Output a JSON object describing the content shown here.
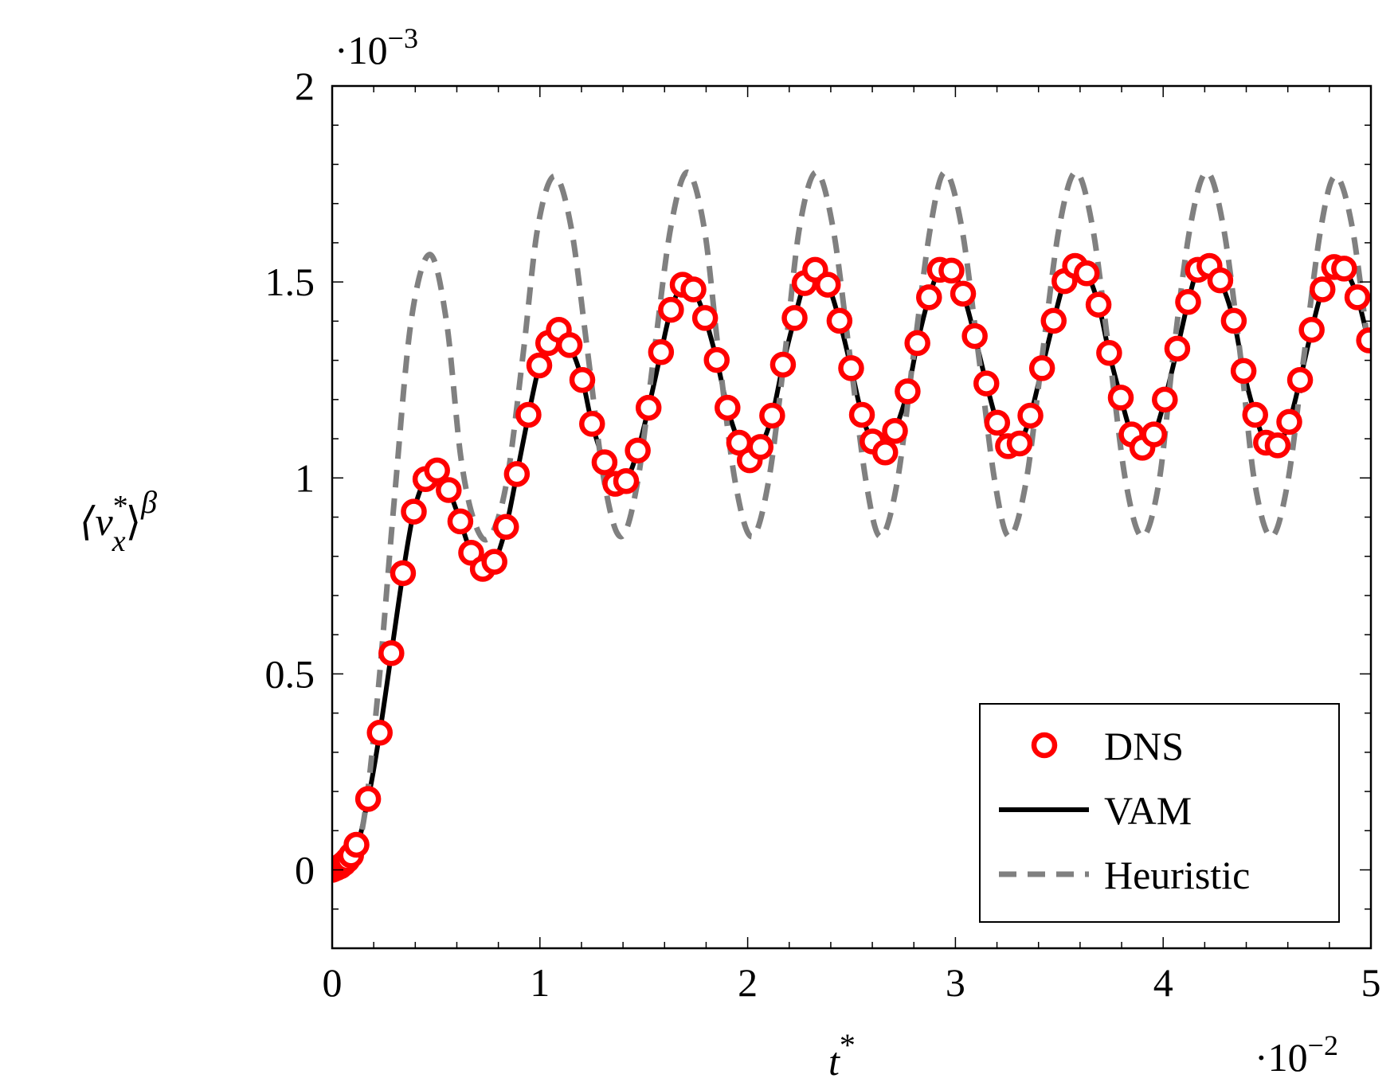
{
  "chart_data": {
    "type": "line",
    "xlabel": {
      "base": "t",
      "sup": "*"
    },
    "ylabel": {
      "open": "⟨v",
      "sup": "*",
      "sub": "x",
      "close": "⟩",
      "outer_sup": "β"
    },
    "x_multiplier": {
      "base": "·10",
      "exponent": "−2"
    },
    "y_multiplier": {
      "base": "·10",
      "exponent": "−3"
    },
    "xlim": [
      0,
      5
    ],
    "ylim": [
      -0.2,
      2
    ],
    "xticks": [
      0,
      1,
      2,
      3,
      4,
      5
    ],
    "yticks": [
      0,
      0.5,
      1,
      1.5,
      2
    ],
    "xminorticks": [
      0.2,
      0.4,
      0.6,
      0.8,
      1.2,
      1.4,
      1.6,
      1.8,
      2.2,
      2.4,
      2.6,
      2.8,
      3.2,
      3.4,
      3.6,
      3.8,
      4.2,
      4.4,
      4.6,
      4.8
    ],
    "yminorticks": [
      -0.1,
      0.1,
      0.2,
      0.3,
      0.4,
      0.6,
      0.7,
      0.8,
      0.9,
      1.1,
      1.2,
      1.3,
      1.4,
      1.6,
      1.7,
      1.8,
      1.9
    ],
    "grid": false,
    "legend": "lower right",
    "series": [
      {
        "name": "DNS",
        "color": "#ff0000",
        "style": "markers",
        "x": [
          0,
          0.009,
          0.022,
          0.039,
          0.056,
          0.073,
          0.091,
          0.117,
          0.173,
          0.229,
          0.285,
          0.341,
          0.393,
          0.449,
          0.505,
          0.561,
          0.617,
          0.669,
          0.725,
          0.781,
          0.837,
          0.889,
          0.945,
          0.997,
          1.04,
          1.091,
          1.143,
          1.204,
          1.251,
          1.311,
          1.363,
          1.415,
          1.471,
          1.523,
          1.583,
          1.631,
          1.687,
          1.739,
          1.795,
          1.851,
          1.903,
          1.959,
          2.01,
          2.062,
          2.118,
          2.17,
          2.226,
          2.274,
          2.325,
          2.386,
          2.442,
          2.498,
          2.55,
          2.601,
          2.662,
          2.709,
          2.77,
          2.817,
          2.873,
          2.925,
          2.981,
          3.037,
          3.093,
          3.149,
          3.201,
          3.253,
          3.309,
          3.361,
          3.417,
          3.473,
          3.525,
          3.576,
          3.632,
          3.689,
          3.74,
          3.796,
          3.848,
          3.9,
          3.956,
          4.008,
          4.068,
          4.12,
          4.167,
          4.223,
          4.275,
          4.34,
          4.387,
          4.443,
          4.495,
          4.551,
          4.607,
          4.659,
          4.715,
          4.767,
          4.823,
          4.871,
          4.935,
          4.991
        ],
        "values": [
          0,
          0.002,
          0.005,
          0.009,
          0.016,
          0.025,
          0.037,
          0.064,
          0.181,
          0.35,
          0.553,
          0.757,
          0.914,
          0.997,
          1.019,
          0.969,
          0.889,
          0.809,
          0.768,
          0.786,
          0.875,
          1.01,
          1.161,
          1.287,
          1.344,
          1.378,
          1.339,
          1.25,
          1.138,
          1.04,
          0.985,
          0.992,
          1.07,
          1.179,
          1.321,
          1.429,
          1.493,
          1.481,
          1.408,
          1.301,
          1.179,
          1.09,
          1.045,
          1.079,
          1.159,
          1.289,
          1.408,
          1.497,
          1.531,
          1.493,
          1.401,
          1.28,
          1.161,
          1.093,
          1.065,
          1.12,
          1.221,
          1.344,
          1.461,
          1.531,
          1.529,
          1.47,
          1.362,
          1.241,
          1.141,
          1.081,
          1.088,
          1.159,
          1.28,
          1.401,
          1.502,
          1.541,
          1.522,
          1.442,
          1.319,
          1.205,
          1.111,
          1.077,
          1.111,
          1.2,
          1.33,
          1.449,
          1.531,
          1.541,
          1.504,
          1.401,
          1.273,
          1.161,
          1.09,
          1.083,
          1.143,
          1.25,
          1.378,
          1.481,
          1.538,
          1.534,
          1.461,
          1.351
        ]
      },
      {
        "name": "VAM",
        "color": "#000000",
        "style": "solid",
        "x": [
          0,
          0.1,
          0.173,
          0.229,
          0.285,
          0.341,
          0.393,
          0.449,
          0.505,
          0.561,
          0.617,
          0.669,
          0.725,
          0.781,
          0.837,
          0.889,
          0.945,
          0.997,
          1.04,
          1.091,
          1.143,
          1.204,
          1.251,
          1.311,
          1.363,
          1.415,
          1.471,
          1.523,
          1.583,
          1.631,
          1.687,
          1.739,
          1.795,
          1.851,
          1.903,
          1.959,
          2.01,
          2.062,
          2.118,
          2.17,
          2.226,
          2.274,
          2.325,
          2.386,
          2.442,
          2.498,
          2.55,
          2.601,
          2.662,
          2.709,
          2.77,
          2.817,
          2.873,
          2.925,
          2.981,
          3.037,
          3.093,
          3.149,
          3.201,
          3.253,
          3.309,
          3.361,
          3.417,
          3.473,
          3.525,
          3.576,
          3.632,
          3.689,
          3.74,
          3.796,
          3.848,
          3.9,
          3.956,
          4.008,
          4.068,
          4.12,
          4.167,
          4.223,
          4.275,
          4.34,
          4.387,
          4.443,
          4.495,
          4.551,
          4.607,
          4.659,
          4.715,
          4.767,
          4.823,
          4.871,
          4.935,
          5.0
        ],
        "values": [
          0,
          0.03,
          0.181,
          0.35,
          0.553,
          0.757,
          0.914,
          0.997,
          1.019,
          0.969,
          0.889,
          0.809,
          0.768,
          0.786,
          0.875,
          1.01,
          1.161,
          1.287,
          1.344,
          1.378,
          1.339,
          1.25,
          1.138,
          1.04,
          0.985,
          0.992,
          1.07,
          1.179,
          1.321,
          1.429,
          1.493,
          1.481,
          1.408,
          1.301,
          1.179,
          1.09,
          1.045,
          1.079,
          1.159,
          1.289,
          1.408,
          1.497,
          1.531,
          1.493,
          1.401,
          1.28,
          1.161,
          1.093,
          1.065,
          1.12,
          1.221,
          1.344,
          1.461,
          1.531,
          1.529,
          1.47,
          1.362,
          1.241,
          1.141,
          1.081,
          1.088,
          1.159,
          1.28,
          1.401,
          1.502,
          1.541,
          1.522,
          1.442,
          1.319,
          1.205,
          1.111,
          1.077,
          1.111,
          1.2,
          1.33,
          1.449,
          1.531,
          1.541,
          1.504,
          1.401,
          1.273,
          1.161,
          1.09,
          1.083,
          1.143,
          1.25,
          1.378,
          1.481,
          1.538,
          1.534,
          1.461,
          1.32
        ]
      },
      {
        "name": "Heuristic",
        "color": "#808080",
        "style": "dashed",
        "x": [
          0,
          0.08,
          0.15,
          0.22,
          0.3,
          0.38,
          0.47,
          0.55,
          0.62,
          0.69,
          0.76,
          0.84,
          0.92,
          0.99,
          1.07,
          1.15,
          1.23,
          1.31,
          1.39,
          1.47,
          1.55,
          1.63,
          1.71,
          1.79,
          1.86,
          1.94,
          2.02,
          2.1,
          2.18,
          2.25,
          2.33,
          2.41,
          2.49,
          2.57,
          2.64,
          2.72,
          2.8,
          2.88,
          2.95,
          3.03,
          3.11,
          3.19,
          3.26,
          3.34,
          3.42,
          3.5,
          3.58,
          3.66,
          3.74,
          3.82,
          3.9,
          3.98,
          4.05,
          4.13,
          4.21,
          4.29,
          4.37,
          4.44,
          4.52,
          4.6,
          4.68,
          4.76,
          4.83,
          4.91,
          4.99
        ],
        "values": [
          0,
          0.01,
          0.12,
          0.45,
          0.95,
          1.4,
          1.57,
          1.4,
          1.05,
          0.88,
          0.85,
          0.99,
          1.32,
          1.64,
          1.77,
          1.64,
          1.32,
          0.99,
          0.85,
          0.99,
          1.32,
          1.64,
          1.78,
          1.64,
          1.32,
          0.99,
          0.85,
          0.99,
          1.32,
          1.64,
          1.78,
          1.64,
          1.32,
          0.99,
          0.85,
          0.99,
          1.32,
          1.64,
          1.78,
          1.64,
          1.32,
          0.99,
          0.85,
          0.99,
          1.32,
          1.64,
          1.78,
          1.64,
          1.32,
          0.99,
          0.85,
          0.99,
          1.32,
          1.64,
          1.78,
          1.64,
          1.32,
          0.99,
          0.85,
          0.99,
          1.32,
          1.64,
          1.77,
          1.64,
          1.32
        ]
      }
    ]
  }
}
